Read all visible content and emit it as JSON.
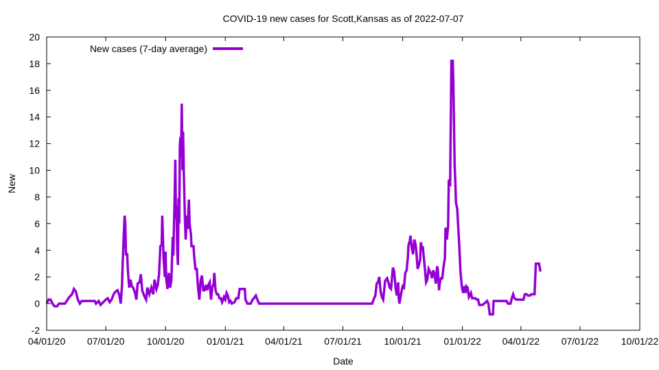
{
  "chart_data": {
    "type": "line",
    "title": "COVID-19 new cases for Scott,Kansas as of 2022-07-07",
    "xlabel": "Date",
    "ylabel": "New",
    "x_ticks": [
      "04/01/20",
      "07/01/20",
      "10/01/20",
      "01/01/21",
      "04/01/21",
      "07/01/21",
      "10/01/21",
      "01/01/22",
      "04/01/22",
      "07/01/22",
      "10/01/22"
    ],
    "xlim": [
      "2020-04-01",
      "2022-10-01"
    ],
    "y_ticks": [
      "-2",
      "0",
      "2",
      "4",
      "6",
      "8",
      "10",
      "12",
      "14",
      "16",
      "18",
      "20"
    ],
    "ylim": [
      -2,
      20
    ],
    "grid": false,
    "legend_position": "top-left",
    "series": [
      {
        "name": "New cases (7-day average)",
        "color": "#9400d3",
        "points": [
          [
            "2020-04-01",
            0.0
          ],
          [
            "2020-04-04",
            0.3
          ],
          [
            "2020-04-07",
            0.3
          ],
          [
            "2020-04-10",
            0.0
          ],
          [
            "2020-04-13",
            -0.2
          ],
          [
            "2020-04-17",
            -0.2
          ],
          [
            "2020-04-20",
            0.0
          ],
          [
            "2020-04-29",
            0.0
          ],
          [
            "2020-05-02",
            0.2
          ],
          [
            "2020-05-06",
            0.5
          ],
          [
            "2020-05-10",
            0.7
          ],
          [
            "2020-05-13",
            1.1
          ],
          [
            "2020-05-16",
            0.9
          ],
          [
            "2020-05-19",
            0.3
          ],
          [
            "2020-05-22",
            0.0
          ],
          [
            "2020-05-25",
            0.2
          ],
          [
            "2020-06-01",
            0.2
          ],
          [
            "2020-06-14",
            0.2
          ],
          [
            "2020-06-16",
            0.0
          ],
          [
            "2020-06-20",
            0.2
          ],
          [
            "2020-06-23",
            -0.1
          ],
          [
            "2020-06-27",
            0.1
          ],
          [
            "2020-07-01",
            0.3
          ],
          [
            "2020-07-04",
            0.4
          ],
          [
            "2020-07-07",
            0.1
          ],
          [
            "2020-07-10",
            0.3
          ],
          [
            "2020-07-13",
            0.7
          ],
          [
            "2020-07-16",
            0.9
          ],
          [
            "2020-07-19",
            1.0
          ],
          [
            "2020-07-22",
            0.6
          ],
          [
            "2020-07-24",
            0.0
          ],
          [
            "2020-07-26",
            1.4
          ],
          [
            "2020-07-27",
            3.0
          ],
          [
            "2020-07-29",
            5.5
          ],
          [
            "2020-07-30",
            6.6
          ],
          [
            "2020-07-31",
            6.0
          ],
          [
            "2020-08-01",
            3.7
          ],
          [
            "2020-08-03",
            3.7
          ],
          [
            "2020-08-04",
            2.5
          ],
          [
            "2020-08-06",
            1.2
          ],
          [
            "2020-08-08",
            1.8
          ],
          [
            "2020-08-10",
            1.3
          ],
          [
            "2020-08-12",
            1.2
          ],
          [
            "2020-08-15",
            0.8
          ],
          [
            "2020-08-17",
            0.3
          ],
          [
            "2020-08-19",
            1.5
          ],
          [
            "2020-08-22",
            1.6
          ],
          [
            "2020-08-24",
            2.2
          ],
          [
            "2020-08-26",
            1.0
          ],
          [
            "2020-08-29",
            0.6
          ],
          [
            "2020-09-01",
            0.3
          ],
          [
            "2020-09-03",
            1.2
          ],
          [
            "2020-09-06",
            0.7
          ],
          [
            "2020-09-09",
            1.2
          ],
          [
            "2020-09-12",
            0.7
          ],
          [
            "2020-09-14",
            1.8
          ],
          [
            "2020-09-17",
            1.1
          ],
          [
            "2020-09-19",
            1.4
          ],
          [
            "2020-09-21",
            2.2
          ],
          [
            "2020-09-23",
            4.3
          ],
          [
            "2020-09-25",
            4.4
          ],
          [
            "2020-09-26",
            6.6
          ],
          [
            "2020-09-28",
            3.4
          ],
          [
            "2020-09-30",
            2.0
          ],
          [
            "2020-10-01",
            3.9
          ],
          [
            "2020-10-02",
            1.9
          ],
          [
            "2020-10-04",
            1.1
          ],
          [
            "2020-10-05",
            1.5
          ],
          [
            "2020-10-06",
            2.3
          ],
          [
            "2020-10-08",
            1.2
          ],
          [
            "2020-10-10",
            1.8
          ],
          [
            "2020-10-12",
            5.0
          ],
          [
            "2020-10-13",
            3.6
          ],
          [
            "2020-10-15",
            8.0
          ],
          [
            "2020-10-16",
            10.8
          ],
          [
            "2020-10-17",
            6.4
          ],
          [
            "2020-10-18",
            7.3
          ],
          [
            "2020-10-19",
            4.0
          ],
          [
            "2020-10-20",
            2.9
          ],
          [
            "2020-10-21",
            7.9
          ],
          [
            "2020-10-22",
            6.0
          ],
          [
            "2020-10-23",
            11.8
          ],
          [
            "2020-10-24",
            12.5
          ],
          [
            "2020-10-25",
            11.0
          ],
          [
            "2020-10-26",
            15.0
          ],
          [
            "2020-10-27",
            10.0
          ],
          [
            "2020-10-28",
            12.9
          ],
          [
            "2020-10-29",
            10.0
          ],
          [
            "2020-10-31",
            6.0
          ],
          [
            "2020-11-01",
            4.8
          ],
          [
            "2020-11-03",
            6.6
          ],
          [
            "2020-11-04",
            5.6
          ],
          [
            "2020-11-06",
            7.8
          ],
          [
            "2020-11-07",
            6.0
          ],
          [
            "2020-11-09",
            5.2
          ],
          [
            "2020-11-10",
            4.3
          ],
          [
            "2020-11-13",
            4.3
          ],
          [
            "2020-11-14",
            3.6
          ],
          [
            "2020-11-16",
            2.6
          ],
          [
            "2020-11-18",
            2.6
          ],
          [
            "2020-11-20",
            1.2
          ],
          [
            "2020-11-22",
            0.3
          ],
          [
            "2020-11-24",
            1.7
          ],
          [
            "2020-11-26",
            2.1
          ],
          [
            "2020-11-28",
            1.0
          ],
          [
            "2020-11-30",
            1.0
          ],
          [
            "2020-12-02",
            1.4
          ],
          [
            "2020-12-04",
            1.0
          ],
          [
            "2020-12-06",
            1.4
          ],
          [
            "2020-12-08",
            1.6
          ],
          [
            "2020-12-10",
            0.3
          ],
          [
            "2020-12-12",
            1.2
          ],
          [
            "2020-12-14",
            1.5
          ],
          [
            "2020-12-15",
            2.3
          ],
          [
            "2020-12-17",
            1.0
          ],
          [
            "2020-12-19",
            0.7
          ],
          [
            "2020-12-21",
            0.7
          ],
          [
            "2020-12-23",
            0.4
          ],
          [
            "2020-12-25",
            0.4
          ],
          [
            "2020-12-27",
            0.1
          ],
          [
            "2020-12-30",
            0.5
          ],
          [
            "2021-01-01",
            0.3
          ],
          [
            "2021-01-03",
            0.8
          ],
          [
            "2021-01-05",
            0.6
          ],
          [
            "2021-01-07",
            0.1
          ],
          [
            "2021-01-09",
            0.2
          ],
          [
            "2021-01-11",
            0.0
          ],
          [
            "2021-01-15",
            0.1
          ],
          [
            "2021-01-18",
            0.4
          ],
          [
            "2021-01-21",
            0.4
          ],
          [
            "2021-01-23",
            1.1
          ],
          [
            "2021-01-31",
            1.1
          ],
          [
            "2021-02-01",
            0.3
          ],
          [
            "2021-02-04",
            0.0
          ],
          [
            "2021-02-09",
            0.0
          ],
          [
            "2021-02-12",
            0.3
          ],
          [
            "2021-02-14",
            0.4
          ],
          [
            "2021-02-17",
            0.6
          ],
          [
            "2021-02-20",
            0.2
          ],
          [
            "2021-02-22",
            0.0
          ],
          [
            "2021-08-15",
            0.0
          ],
          [
            "2021-08-18",
            0.4
          ],
          [
            "2021-08-20",
            0.6
          ],
          [
            "2021-08-22",
            1.5
          ],
          [
            "2021-08-24",
            1.6
          ],
          [
            "2021-08-26",
            2.0
          ],
          [
            "2021-08-28",
            0.9
          ],
          [
            "2021-08-30",
            0.5
          ],
          [
            "2021-09-01",
            0.3
          ],
          [
            "2021-09-04",
            1.7
          ],
          [
            "2021-09-07",
            1.9
          ],
          [
            "2021-09-09",
            1.6
          ],
          [
            "2021-09-11",
            1.2
          ],
          [
            "2021-09-13",
            1.1
          ],
          [
            "2021-09-16",
            2.7
          ],
          [
            "2021-09-18",
            2.4
          ],
          [
            "2021-09-20",
            1.2
          ],
          [
            "2021-09-22",
            0.6
          ],
          [
            "2021-09-24",
            1.6
          ],
          [
            "2021-09-25",
            0.4
          ],
          [
            "2021-09-26",
            0.0
          ],
          [
            "2021-09-28",
            0.6
          ],
          [
            "2021-10-01",
            1.3
          ],
          [
            "2021-10-03",
            1.2
          ],
          [
            "2021-10-05",
            2.3
          ],
          [
            "2021-10-07",
            2.5
          ],
          [
            "2021-10-09",
            3.5
          ],
          [
            "2021-10-10",
            4.4
          ],
          [
            "2021-10-12",
            4.7
          ],
          [
            "2021-10-13",
            5.1
          ],
          [
            "2021-10-15",
            4.2
          ],
          [
            "2021-10-17",
            3.7
          ],
          [
            "2021-10-19",
            4.8
          ],
          [
            "2021-10-21",
            4.4
          ],
          [
            "2021-10-22",
            3.9
          ],
          [
            "2021-10-24",
            2.6
          ],
          [
            "2021-10-26",
            2.9
          ],
          [
            "2021-10-28",
            3.3
          ],
          [
            "2021-10-29",
            4.6
          ],
          [
            "2021-10-31",
            4.0
          ],
          [
            "2021-11-01",
            4.3
          ],
          [
            "2021-11-02",
            3.7
          ],
          [
            "2021-11-04",
            2.7
          ],
          [
            "2021-11-06",
            1.6
          ],
          [
            "2021-11-08",
            1.8
          ],
          [
            "2021-11-10",
            2.6
          ],
          [
            "2021-11-12",
            2.4
          ],
          [
            "2021-11-14",
            2.2
          ],
          [
            "2021-11-15",
            1.9
          ],
          [
            "2021-11-17",
            2.5
          ],
          [
            "2021-11-19",
            2.2
          ],
          [
            "2021-11-21",
            1.5
          ],
          [
            "2021-11-23",
            2.8
          ],
          [
            "2021-11-24",
            2.6
          ],
          [
            "2021-11-26",
            1.0
          ],
          [
            "2021-11-27",
            1.5
          ],
          [
            "2021-11-29",
            1.9
          ],
          [
            "2021-12-01",
            1.9
          ],
          [
            "2021-12-03",
            2.8
          ],
          [
            "2021-12-05",
            3.4
          ],
          [
            "2021-12-06",
            5.7
          ],
          [
            "2021-12-08",
            4.8
          ],
          [
            "2021-12-10",
            5.8
          ],
          [
            "2021-12-11",
            9.3
          ],
          [
            "2021-12-13",
            8.8
          ],
          [
            "2021-12-15",
            18.3
          ],
          [
            "2021-12-16",
            16.2
          ],
          [
            "2021-12-17",
            18.3
          ],
          [
            "2021-12-18",
            16.6
          ],
          [
            "2021-12-20",
            10.4
          ],
          [
            "2021-12-21",
            9.3
          ],
          [
            "2021-12-22",
            7.6
          ],
          [
            "2021-12-24",
            7.1
          ],
          [
            "2021-12-26",
            5.3
          ],
          [
            "2021-12-27",
            4.5
          ],
          [
            "2021-12-29",
            2.4
          ],
          [
            "2021-12-31",
            1.3
          ],
          [
            "2022-01-02",
            0.8
          ],
          [
            "2022-01-04",
            1.3
          ],
          [
            "2022-01-06",
            0.8
          ],
          [
            "2022-01-07",
            1.3
          ],
          [
            "2022-01-09",
            1.2
          ],
          [
            "2022-01-11",
            0.5
          ],
          [
            "2022-01-14",
            0.8
          ],
          [
            "2022-01-16",
            0.4
          ],
          [
            "2022-01-21",
            0.4
          ],
          [
            "2022-01-23",
            0.3
          ],
          [
            "2022-01-25",
            0.3
          ],
          [
            "2022-01-27",
            -0.1
          ],
          [
            "2022-02-01",
            -0.1
          ],
          [
            "2022-02-06",
            0.1
          ],
          [
            "2022-02-08",
            0.2
          ],
          [
            "2022-02-10",
            0.0
          ],
          [
            "2022-02-12",
            -0.8
          ],
          [
            "2022-02-15",
            -0.8
          ],
          [
            "2022-02-17",
            -0.8
          ],
          [
            "2022-02-18",
            0.2
          ],
          [
            "2022-03-01",
            0.2
          ],
          [
            "2022-03-10",
            0.2
          ],
          [
            "2022-03-12",
            0.0
          ],
          [
            "2022-03-16",
            0.0
          ],
          [
            "2022-03-18",
            0.4
          ],
          [
            "2022-03-20",
            0.7
          ],
          [
            "2022-03-22",
            0.4
          ],
          [
            "2022-03-25",
            0.3
          ],
          [
            "2022-04-05",
            0.3
          ],
          [
            "2022-04-07",
            0.7
          ],
          [
            "2022-04-10",
            0.7
          ],
          [
            "2022-04-12",
            0.6
          ],
          [
            "2022-04-15",
            0.6
          ],
          [
            "2022-04-17",
            0.7
          ],
          [
            "2022-04-20",
            0.7
          ],
          [
            "2022-04-22",
            0.7
          ],
          [
            "2022-04-24",
            3.0
          ],
          [
            "2022-04-29",
            3.0
          ],
          [
            "2022-05-01",
            2.4
          ]
        ]
      }
    ]
  }
}
